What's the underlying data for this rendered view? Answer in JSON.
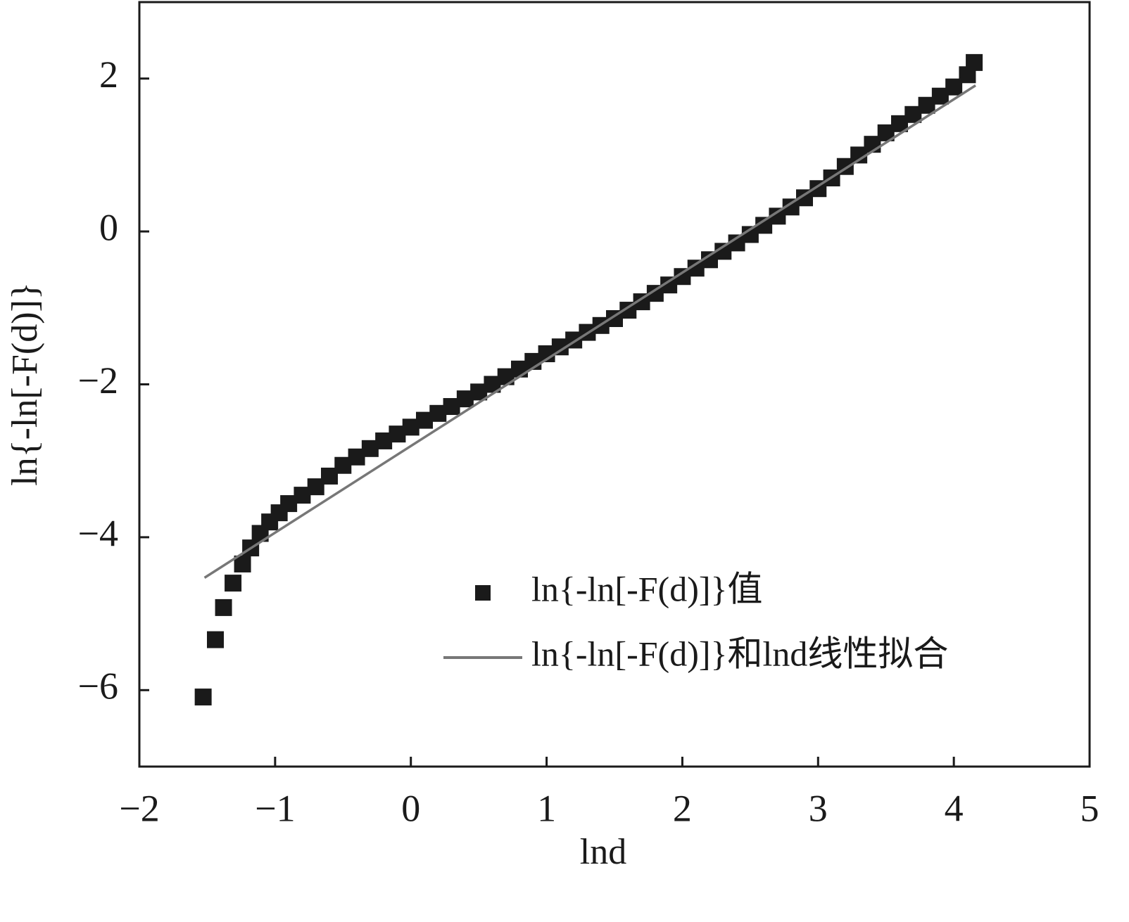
{
  "chart_data": {
    "type": "scatter",
    "x_label": "lnd",
    "y_label": "ln{-ln[-F(d)]}",
    "xlim": [
      -2,
      5
    ],
    "ylim": [
      -7,
      3
    ],
    "xticks": [
      {
        "value": -2,
        "label": "−2"
      },
      {
        "value": -1,
        "label": "−1"
      },
      0,
      1,
      2,
      3,
      4,
      5
    ],
    "yticks": [
      {
        "value": -6,
        "label": "−6"
      },
      {
        "value": -4,
        "label": "−4"
      },
      {
        "value": -2,
        "label": "−2"
      },
      0,
      2
    ],
    "legend": "lower right",
    "series": [
      {
        "name": "ln{-ln[-F(d)]}值",
        "type": "scatter",
        "color": "#1a1a1a",
        "x": [
          -1.53,
          -1.44,
          -1.38,
          -1.31,
          -1.24,
          -1.18,
          -1.11,
          -1.04,
          -0.97,
          -0.9,
          -0.8,
          -0.7,
          -0.6,
          -0.5,
          -0.4,
          -0.3,
          -0.2,
          -0.1,
          0.0,
          0.1,
          0.2,
          0.3,
          0.4,
          0.5,
          0.6,
          0.7,
          0.8,
          0.9,
          1.0,
          1.1,
          1.2,
          1.3,
          1.4,
          1.5,
          1.6,
          1.7,
          1.8,
          1.9,
          2.0,
          2.1,
          2.2,
          2.3,
          2.4,
          2.5,
          2.6,
          2.7,
          2.8,
          2.9,
          3.0,
          3.1,
          3.2,
          3.3,
          3.4,
          3.5,
          3.6,
          3.7,
          3.8,
          3.9,
          4.0,
          4.1,
          4.15
        ],
        "values": [
          -6.09,
          -5.34,
          -4.92,
          -4.6,
          -4.35,
          -4.14,
          -3.95,
          -3.8,
          -3.68,
          -3.56,
          -3.45,
          -3.34,
          -3.2,
          -3.06,
          -2.95,
          -2.84,
          -2.74,
          -2.65,
          -2.56,
          -2.47,
          -2.38,
          -2.29,
          -2.19,
          -2.1,
          -2.0,
          -1.9,
          -1.8,
          -1.7,
          -1.6,
          -1.51,
          -1.42,
          -1.32,
          -1.23,
          -1.14,
          -1.03,
          -0.92,
          -0.81,
          -0.7,
          -0.59,
          -0.48,
          -0.37,
          -0.26,
          -0.15,
          -0.04,
          0.08,
          0.2,
          0.32,
          0.44,
          0.56,
          0.7,
          0.85,
          1.0,
          1.14,
          1.29,
          1.41,
          1.53,
          1.65,
          1.77,
          1.89,
          2.05,
          2.21
        ]
      },
      {
        "name": "ln{-ln[-F(d)]}和lnd线性拟合",
        "type": "line",
        "color": "#777777",
        "x": [
          -1.52,
          4.16
        ],
        "values": [
          -4.53,
          1.91
        ]
      }
    ]
  }
}
